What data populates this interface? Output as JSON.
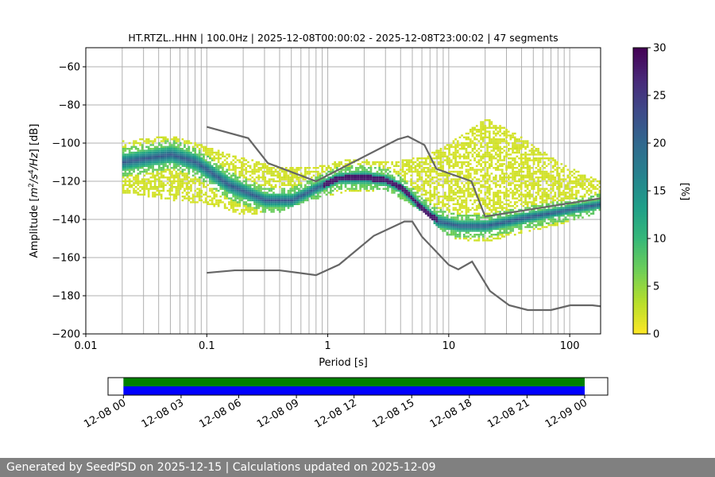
{
  "chart_data": [
    {
      "type": "heatmap",
      "title": "HT.RTZL..HHN | 100.0Hz | 2025-12-08T00:00:02 - 2025-12-08T23:00:02 | 47 segments",
      "xlabel": "Period [s]",
      "ylabel": "Amplitude [m²/s⁴/Hz] [dB]",
      "xscale": "log",
      "xlim": [
        0.01,
        180
      ],
      "ylim": [
        -200,
        -50
      ],
      "grid": true,
      "x_tick_labels": [
        "0.01",
        "0.1",
        "1",
        "10",
        "100"
      ],
      "y_ticks": [
        -200,
        -180,
        -160,
        -140,
        -120,
        -100,
        -80,
        -60
      ],
      "colorbar": {
        "label": "[%]",
        "range": [
          0,
          30
        ],
        "ticks": [
          0,
          5,
          10,
          15,
          20,
          25,
          30
        ],
        "colormap": "viridis_r"
      },
      "psd_band": {
        "median_upper": [
          [
            0.02,
            -106
          ],
          [
            0.05,
            -102
          ],
          [
            0.08,
            -106
          ],
          [
            0.15,
            -118
          ],
          [
            0.3,
            -127
          ],
          [
            0.5,
            -127
          ],
          [
            0.8,
            -121
          ],
          [
            1.2,
            -116
          ],
          [
            2,
            -115
          ],
          [
            3,
            -117
          ],
          [
            4,
            -121
          ],
          [
            6,
            -132
          ],
          [
            8,
            -138
          ],
          [
            12,
            -141
          ],
          [
            20,
            -141
          ],
          [
            40,
            -137
          ],
          [
            80,
            -134
          ],
          [
            180,
            -130
          ]
        ],
        "median_lower": [
          [
            0.02,
            -114
          ],
          [
            0.05,
            -110
          ],
          [
            0.08,
            -114
          ],
          [
            0.15,
            -126
          ],
          [
            0.3,
            -133
          ],
          [
            0.5,
            -133
          ],
          [
            0.8,
            -126
          ],
          [
            1.2,
            -121
          ],
          [
            2,
            -121
          ],
          [
            3,
            -122
          ],
          [
            4,
            -126
          ],
          [
            6,
            -137
          ],
          [
            8,
            -144
          ],
          [
            12,
            -146
          ],
          [
            20,
            -146
          ],
          [
            40,
            -142
          ],
          [
            80,
            -138
          ],
          [
            180,
            -134
          ]
        ],
        "scatter_upper": [
          [
            0.02,
            -99
          ],
          [
            0.05,
            -96
          ],
          [
            0.1,
            -102
          ],
          [
            0.2,
            -108
          ],
          [
            0.4,
            -112
          ],
          [
            0.7,
            -113
          ],
          [
            1.5,
            -108
          ],
          [
            3,
            -110
          ],
          [
            6,
            -107
          ],
          [
            10,
            -100
          ],
          [
            20,
            -87
          ],
          [
            40,
            -97
          ],
          [
            80,
            -110
          ],
          [
            180,
            -120
          ]
        ],
        "scatter_lower": [
          [
            0.02,
            -126
          ],
          [
            0.05,
            -130
          ],
          [
            0.1,
            -132
          ],
          [
            0.2,
            -138
          ],
          [
            0.4,
            -136
          ],
          [
            0.7,
            -130
          ],
          [
            1.5,
            -125
          ],
          [
            3,
            -125
          ],
          [
            6,
            -136
          ],
          [
            10,
            -150
          ],
          [
            20,
            -152
          ],
          [
            40,
            -147
          ],
          [
            80,
            -143
          ],
          [
            180,
            -136
          ]
        ]
      },
      "high_noise_model": {
        "x": [
          0.1,
          0.22,
          0.32,
          0.8,
          3.8,
          4.6,
          6.3,
          7.9,
          15.4,
          20,
          354.8
        ],
        "y": [
          -91.5,
          -97.4,
          -110.5,
          -120.0,
          -98.0,
          -96.5,
          -101.0,
          -113.5,
          -120.0,
          -138.5,
          -126.0
        ]
      },
      "low_noise_model": {
        "x": [
          0.1,
          0.17,
          0.4,
          0.8,
          1.24,
          2.4,
          4.3,
          5,
          6,
          10,
          12,
          15.6,
          21.9,
          31.6,
          45,
          70,
          101,
          154,
          328
        ],
        "y": [
          -168.0,
          -166.7,
          -166.7,
          -169.2,
          -163.7,
          -148.6,
          -141.1,
          -141.1,
          -149.0,
          -163.8,
          -166.2,
          -162.1,
          -177.5,
          -185.0,
          -187.5,
          -187.5,
          -185.0,
          -185.0,
          -187.5
        ]
      }
    },
    {
      "type": "bar",
      "title": "",
      "xlabel": "",
      "ylabel": "",
      "tick_labels": [
        "12-08 00",
        "12-08 03",
        "12-08 06",
        "12-08 09",
        "12-08 12",
        "12-08 15",
        "12-08 18",
        "12-08 21",
        "12-09 00"
      ],
      "series": [
        {
          "color": "#008000",
          "start_hour": 0,
          "end_hour": 24
        },
        {
          "color": "#0000ff",
          "start_hour": 0,
          "end_hour": 24
        }
      ]
    }
  ],
  "footer": {
    "text": "Generated by SeedPSD on 2025-12-15 | Calculations updated on 2025-12-09"
  }
}
